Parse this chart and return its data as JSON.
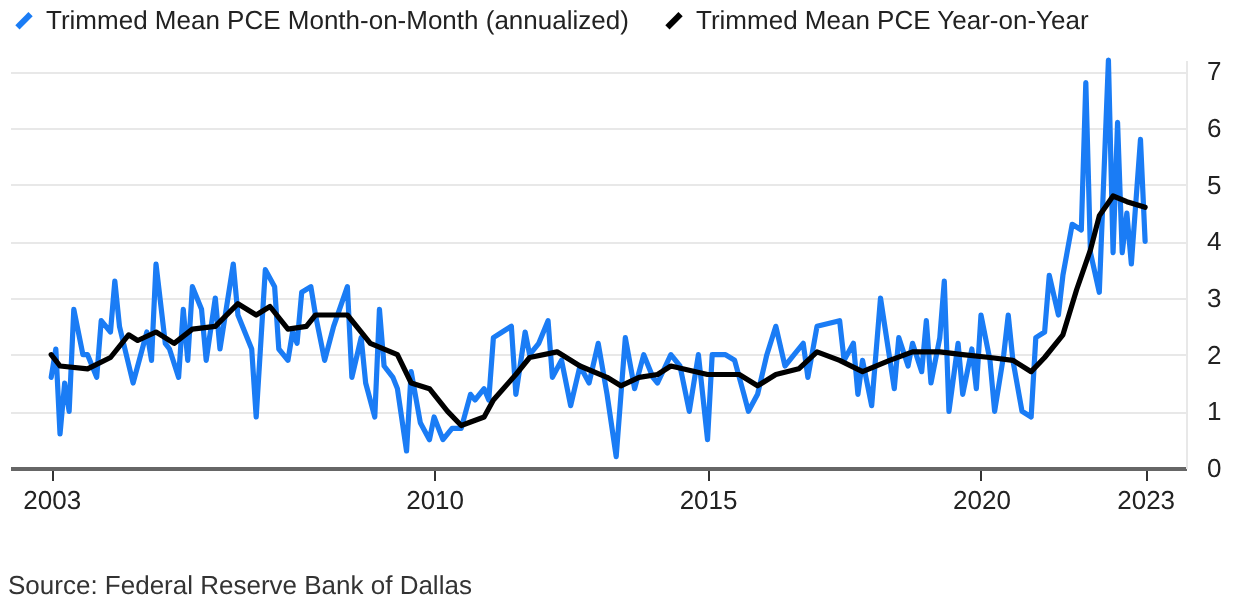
{
  "chart_data": {
    "type": "line",
    "legend": "top left",
    "grid": "y",
    "ylim": [
      0,
      7.2
    ],
    "yticks": [
      0,
      1,
      2,
      3,
      4,
      5,
      6,
      7
    ],
    "xlim": [
      "2002-04",
      "2023-10"
    ],
    "xticks": [
      "2003",
      "2010",
      "2015",
      "2020",
      "2023"
    ],
    "annotations": [
      "Source: Federal Reserve Bank of Dallas"
    ],
    "series": [
      {
        "name": "Trimmed Mean PCE Month-on-Month (annualized)",
        "color": "#1a7cf5",
        "x": [
          "2003-01",
          "2003-02",
          "2003-03",
          "2003-04",
          "2003-05",
          "2003-06",
          "2003-08",
          "2003-09",
          "2003-11",
          "2003-12",
          "2004-02",
          "2004-03",
          "2004-04",
          "2004-07",
          "2004-10",
          "2004-11",
          "2004-12",
          "2005-02",
          "2005-03",
          "2005-05",
          "2005-06",
          "2005-07",
          "2005-08",
          "2005-10",
          "2005-11",
          "2006-01",
          "2006-02",
          "2006-05",
          "2006-06",
          "2006-09",
          "2006-10",
          "2006-12",
          "2007-02",
          "2007-03",
          "2007-05",
          "2007-06",
          "2007-07",
          "2007-08",
          "2007-10",
          "2007-11",
          "2008-01",
          "2008-03",
          "2008-06",
          "2008-07",
          "2008-09",
          "2008-10",
          "2008-12",
          "2009-01",
          "2009-02",
          "2009-04",
          "2009-05",
          "2009-07",
          "2009-08",
          "2009-10",
          "2009-12",
          "2010-01",
          "2010-03",
          "2010-05",
          "2010-07",
          "2010-09",
          "2010-10",
          "2010-12",
          "2011-01",
          "2011-02",
          "2011-04",
          "2011-06",
          "2011-07",
          "2011-09",
          "2011-10",
          "2011-12",
          "2012-02",
          "2012-03",
          "2012-05",
          "2012-07",
          "2012-09",
          "2012-11",
          "2013-01",
          "2013-03",
          "2013-05",
          "2013-07",
          "2013-09",
          "2013-11",
          "2014-01",
          "2014-02",
          "2014-05",
          "2014-07",
          "2014-09",
          "2014-11",
          "2015-01",
          "2015-02",
          "2015-05",
          "2015-07",
          "2015-09",
          "2015-10",
          "2015-12",
          "2016-02",
          "2016-04",
          "2016-06",
          "2016-08",
          "2016-10",
          "2016-11",
          "2017-01",
          "2017-06",
          "2017-07",
          "2017-09",
          "2017-10",
          "2017-11",
          "2018-01",
          "2018-03",
          "2018-06",
          "2018-07",
          "2018-09",
          "2018-10",
          "2018-12",
          "2019-01",
          "2019-02",
          "2019-04",
          "2019-05",
          "2019-06",
          "2019-08",
          "2019-09",
          "2019-11",
          "2019-12",
          "2020-01",
          "2020-03",
          "2020-04",
          "2020-06",
          "2020-07",
          "2020-08",
          "2020-10",
          "2020-12",
          "2021-01",
          "2021-03",
          "2021-04",
          "2021-06",
          "2021-07",
          "2021-09",
          "2021-11",
          "2021-12",
          "2022-01",
          "2022-03",
          "2022-05",
          "2022-06",
          "2022-07",
          "2022-08",
          "2022-09",
          "2022-10",
          "2022-12",
          "2023-01"
        ],
        "values": [
          1.6,
          2.1,
          0.6,
          1.5,
          1.0,
          2.8,
          2.0,
          2.0,
          1.6,
          2.6,
          2.4,
          3.3,
          2.5,
          1.5,
          2.4,
          1.9,
          3.6,
          2.2,
          2.1,
          1.6,
          2.8,
          1.9,
          3.2,
          2.8,
          1.9,
          3.0,
          2.1,
          3.6,
          2.7,
          2.1,
          0.9,
          3.5,
          3.2,
          2.1,
          1.9,
          2.4,
          2.2,
          3.1,
          3.2,
          2.7,
          1.9,
          2.5,
          3.2,
          1.6,
          2.3,
          1.5,
          0.9,
          2.8,
          1.8,
          1.6,
          1.4,
          0.3,
          1.7,
          0.8,
          0.5,
          0.9,
          0.5,
          0.7,
          0.7,
          1.3,
          1.2,
          1.4,
          1.2,
          2.3,
          2.4,
          2.5,
          1.3,
          2.4,
          2.0,
          2.2,
          2.6,
          1.6,
          1.9,
          1.1,
          1.8,
          1.5,
          2.2,
          1.3,
          0.2,
          2.3,
          1.4,
          2.0,
          1.6,
          1.5,
          2.0,
          1.8,
          1.0,
          2.0,
          0.5,
          2.0,
          2.0,
          1.9,
          1.3,
          1.0,
          1.3,
          2.0,
          2.5,
          1.8,
          2.0,
          2.2,
          1.6,
          2.5,
          2.6,
          1.9,
          2.2,
          1.3,
          1.9,
          1.1,
          3.0,
          1.4,
          2.3,
          1.8,
          2.2,
          1.7,
          2.6,
          1.5,
          2.3,
          3.3,
          1.0,
          2.2,
          1.3,
          2.1,
          1.4,
          2.7,
          1.9,
          1.0,
          2.0,
          2.7,
          1.9,
          1.0,
          0.9,
          2.3,
          2.4,
          3.4,
          2.7,
          3.4,
          4.3,
          4.2,
          6.8,
          3.8,
          3.1,
          7.2,
          3.8,
          6.1,
          3.8,
          4.5,
          3.6,
          5.8,
          4.0
        ]
      },
      {
        "name": "Trimmed Mean PCE Year-on-Year",
        "color": "#000000",
        "x": [
          "2003-01",
          "2003-03",
          "2003-09",
          "2004-02",
          "2004-06",
          "2004-08",
          "2004-12",
          "2005-04",
          "2005-08",
          "2006-01",
          "2006-06",
          "2006-10",
          "2007-01",
          "2007-05",
          "2007-09",
          "2007-11",
          "2008-06",
          "2008-11",
          "2009-05",
          "2009-08",
          "2009-12",
          "2010-04",
          "2010-07",
          "2010-12",
          "2011-02",
          "2011-07",
          "2011-10",
          "2012-04",
          "2012-09",
          "2013-03",
          "2013-06",
          "2013-10",
          "2014-02",
          "2014-05",
          "2015-01",
          "2015-08",
          "2015-12",
          "2016-04",
          "2016-09",
          "2017-01",
          "2017-06",
          "2017-11",
          "2018-05",
          "2018-10",
          "2019-04",
          "2019-09",
          "2020-03",
          "2020-08",
          "2020-12",
          "2021-03",
          "2021-07",
          "2021-10",
          "2022-01",
          "2022-03",
          "2022-06",
          "2022-09",
          "2023-01"
        ],
        "values": [
          2.0,
          1.8,
          1.75,
          1.95,
          2.35,
          2.25,
          2.4,
          2.2,
          2.45,
          2.5,
          2.9,
          2.7,
          2.85,
          2.45,
          2.5,
          2.7,
          2.7,
          2.2,
          2.0,
          1.5,
          1.4,
          1.0,
          0.75,
          0.9,
          1.2,
          1.65,
          1.95,
          2.05,
          1.8,
          1.6,
          1.45,
          1.6,
          1.65,
          1.8,
          1.65,
          1.65,
          1.45,
          1.65,
          1.75,
          2.05,
          1.9,
          1.7,
          1.9,
          2.05,
          2.05,
          2.0,
          1.95,
          1.9,
          1.7,
          1.95,
          2.35,
          3.15,
          3.85,
          4.45,
          4.8,
          4.7,
          4.6
        ]
      }
    ]
  }
}
